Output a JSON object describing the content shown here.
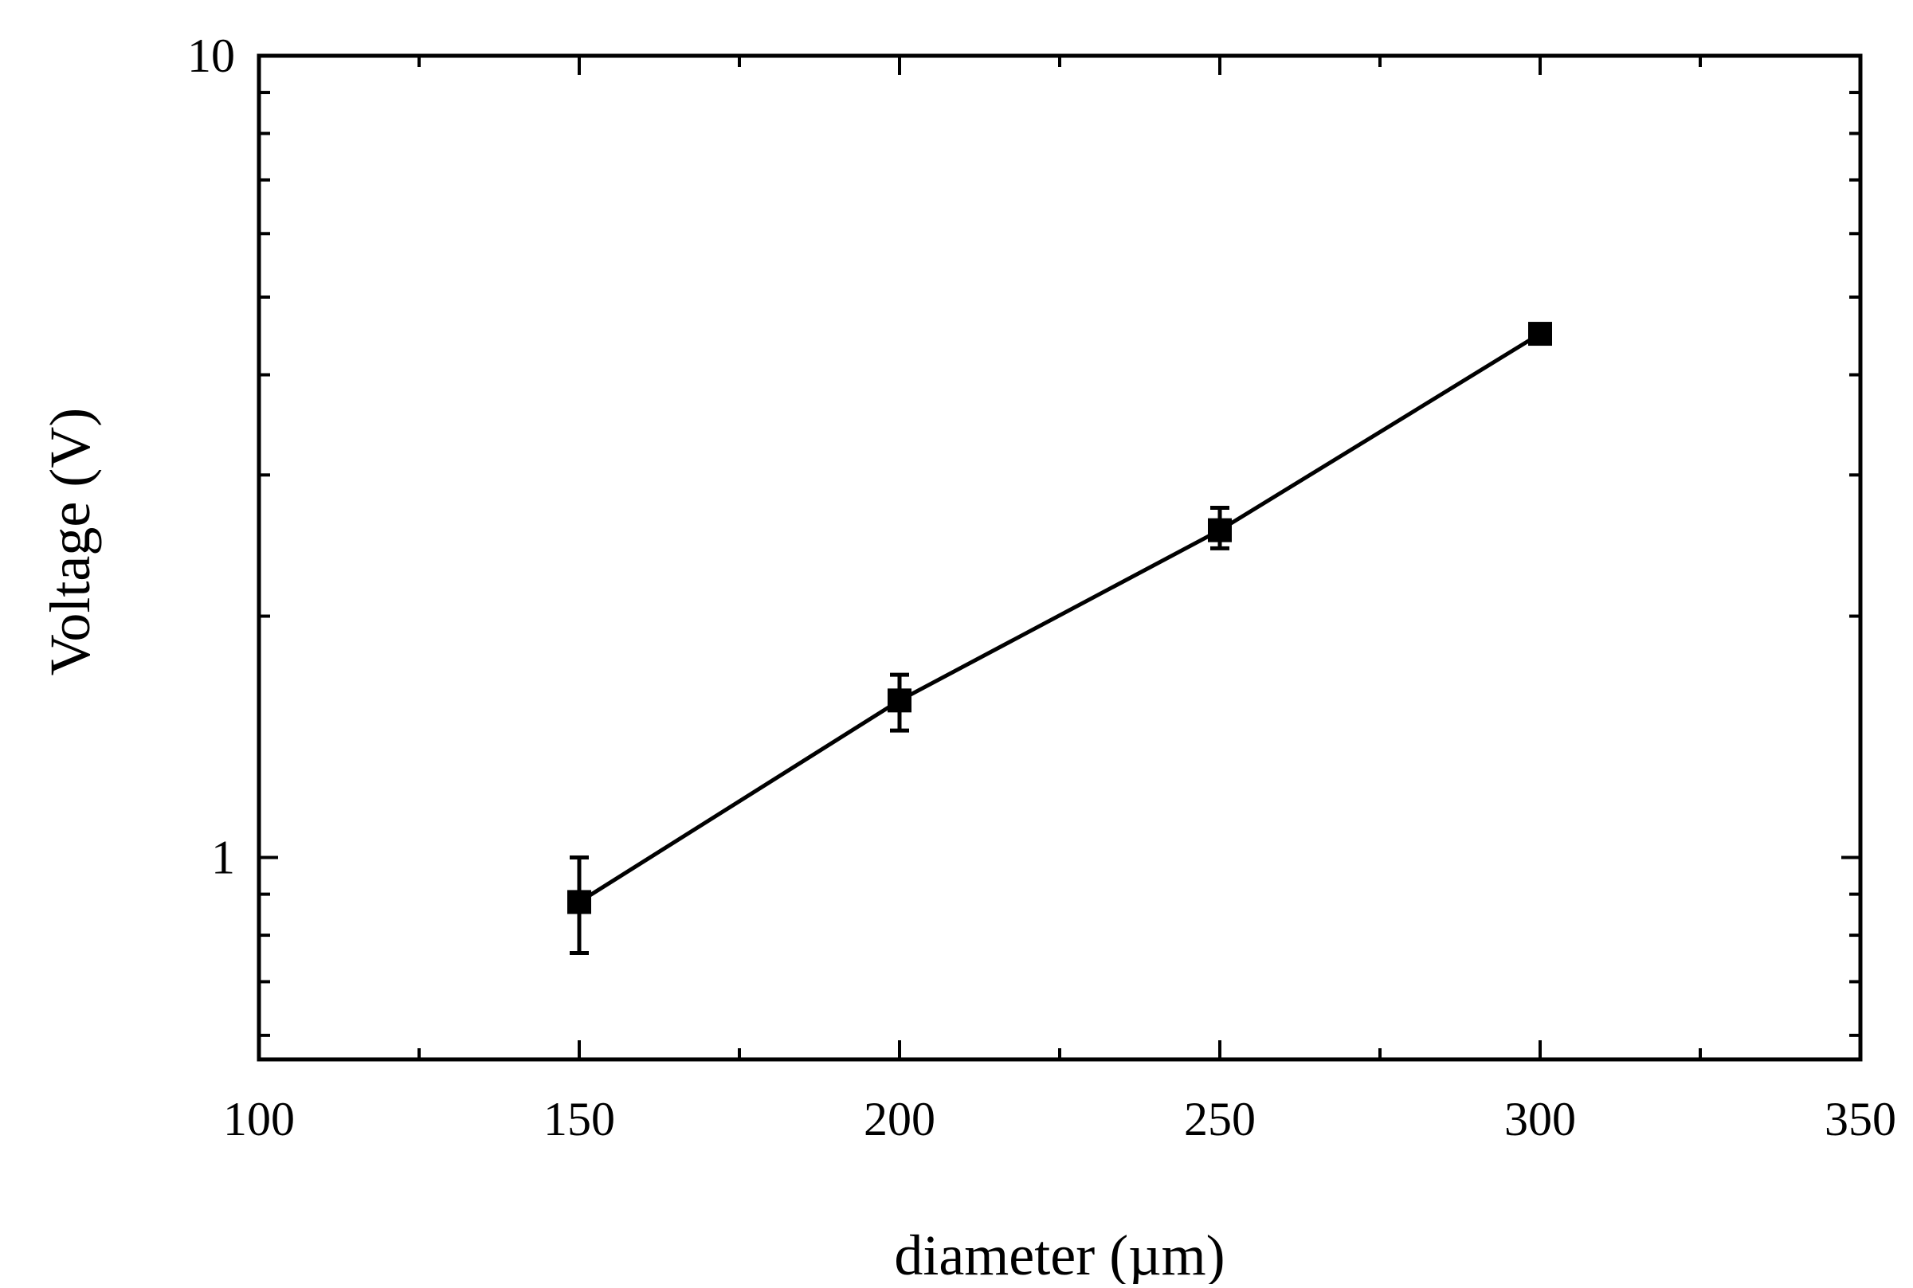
{
  "chart_data": {
    "type": "line",
    "title": "",
    "xlabel": "diameter (µm)",
    "ylabel": "Voltage (V)",
    "xlim": [
      100,
      350
    ],
    "ylim": [
      0.56,
      10
    ],
    "yscale": "log",
    "grid": false,
    "legend": "none",
    "x_ticks": [
      100,
      150,
      200,
      250,
      300,
      350
    ],
    "x_tick_labels": [
      "100",
      "150",
      "200",
      "250",
      "300",
      "350"
    ],
    "y_ticks": [
      1,
      10
    ],
    "y_tick_labels": [
      "1",
      "10"
    ],
    "y_minor_ticks": [
      0.6,
      0.7,
      0.8,
      0.9,
      2,
      3,
      4,
      5,
      6,
      7,
      8,
      9
    ],
    "marker": "square",
    "line_color": "#000000",
    "series": [
      {
        "x": [
          150,
          200,
          250,
          300
        ],
        "y": [
          0.88,
          1.57,
          2.56,
          4.5
        ],
        "y_err_low": [
          0.12,
          0.13,
          0.13,
          0.08
        ],
        "y_err_high": [
          0.12,
          0.12,
          0.17,
          0.08
        ]
      }
    ]
  }
}
